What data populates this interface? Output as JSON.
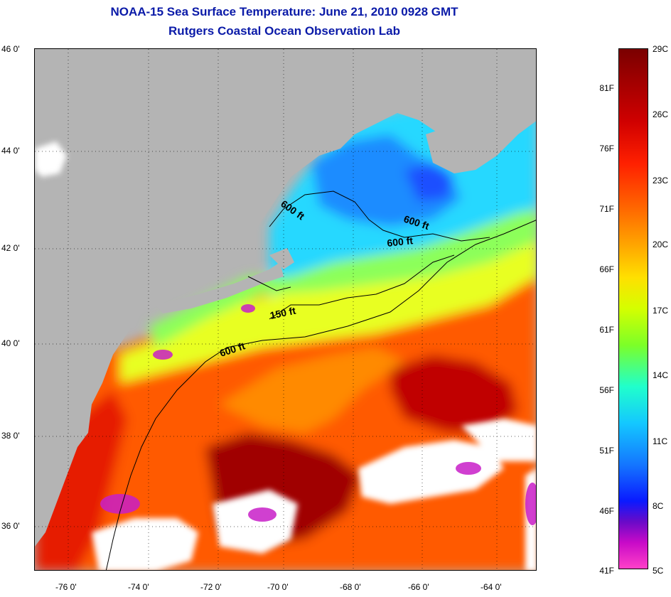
{
  "title": {
    "line1": "NOAA-15 Sea Surface Temperature:  June 21, 2010 0928 GMT",
    "line2": "Rutgers Coastal Ocean Observation Lab"
  },
  "map": {
    "lat_labels": [
      "46 0'",
      "44 0'",
      "42 0'",
      "40 0'",
      "38 0'",
      "36 0'"
    ],
    "lon_labels": [
      "-76 0'",
      "-74 0'",
      "-72 0'",
      "-70 0'",
      "-68 0'",
      "-66 0'",
      "-64 0'"
    ],
    "contour_labels": [
      "600 ft",
      "600 ft",
      "600 ft",
      "150 ft",
      "600 ft"
    ],
    "land_color": "#b4b4b4",
    "cloud_color": "#ffffff"
  },
  "colorbar": {
    "fahrenheit": [
      "81F",
      "76F",
      "71F",
      "66F",
      "61F",
      "56F",
      "51F",
      "46F",
      "41F"
    ],
    "celsius": [
      "29C",
      "26C",
      "23C",
      "20C",
      "17C",
      "14C",
      "11C",
      "8C",
      "5C"
    ]
  }
}
